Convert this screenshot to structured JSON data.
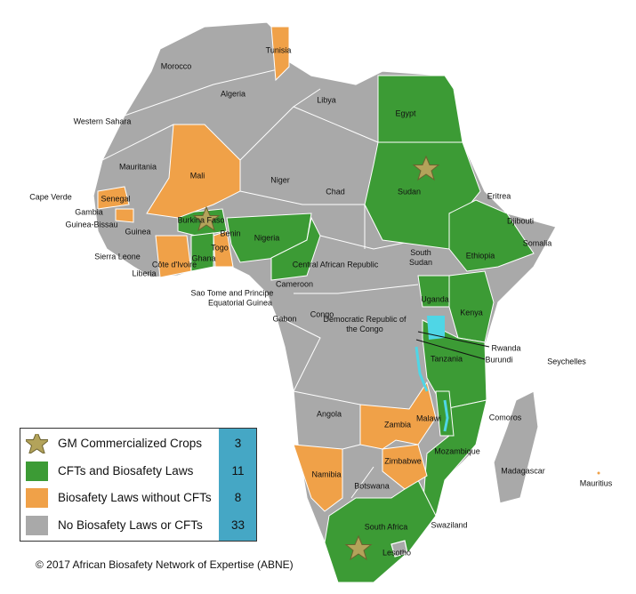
{
  "map": {
    "labels": [
      "Morocco",
      "Algeria",
      "Tunisia",
      "Libya",
      "Egypt",
      "Western Sahara",
      "Mauritania",
      "Mali",
      "Niger",
      "Chad",
      "Sudan",
      "Eritrea",
      "Djibouti",
      "Somalia",
      "Cape Verde",
      "Senegal",
      "Gambia",
      "Guinea-Bissau",
      "Guinea",
      "Burkina Faso",
      "Benin",
      "Togo",
      "Nigeria",
      "Sierra Leone",
      "Ghana",
      "Côte d'Ivoire",
      "Liberia",
      "Cameroon",
      "Central African Republic",
      "South Sudan",
      "Ethiopia",
      "Uganda",
      "Kenya",
      "Sao Tome and Principe",
      "Equatorial Guinea",
      "Gabon",
      "Congo",
      "Democratic Republic of the Congo",
      "Rwanda",
      "Burundi",
      "Tanzania",
      "Seychelles",
      "Angola",
      "Malawi",
      "Comoros",
      "Zambia",
      "Mozambique",
      "Zimbabwe",
      "Madagascar",
      "Mauritius",
      "Namibia",
      "Botswana",
      "South Africa",
      "Swaziland",
      "Lesotho"
    ]
  },
  "legend": {
    "items": [
      {
        "label": "GM Commercialized Crops",
        "count": 3
      },
      {
        "label": "CFTs and Biosafety Laws",
        "count": 11
      },
      {
        "label": "Biosafety Laws without  CFTs",
        "count": 8
      },
      {
        "label": "No Biosafety Laws or CFTs",
        "count": 33
      }
    ]
  },
  "copyright": "© 2017 African Biosafety Network of Expertise (ABNE)"
}
